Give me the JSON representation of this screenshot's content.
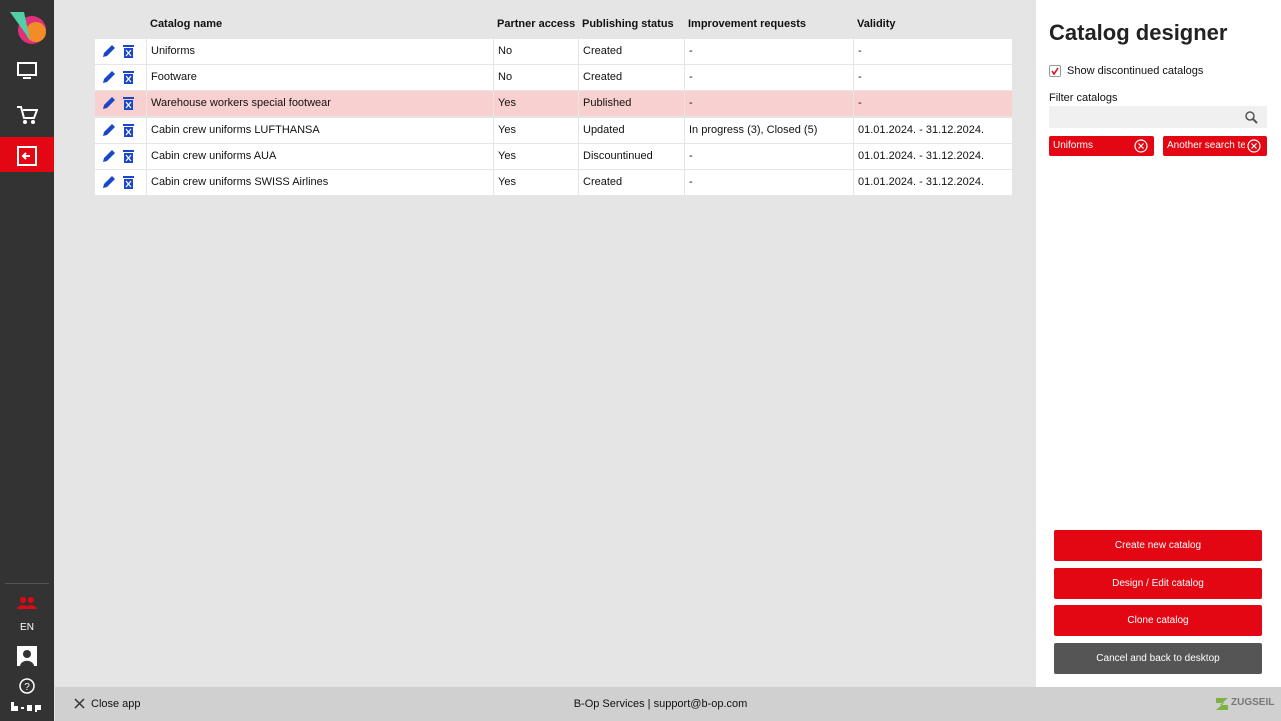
{
  "sidebar": {
    "language": "EN"
  },
  "table": {
    "headers": [
      "Catalog name",
      "Partner access",
      "Publishing status",
      "Improvement requests",
      "Validity"
    ],
    "rows": [
      [
        "Uniforms",
        "No",
        "Created",
        "-",
        "-"
      ],
      [
        "Footware",
        "No",
        "Created",
        "-",
        "-"
      ],
      [
        "Warehouse workers special footwear",
        "Yes",
        "Published",
        "-",
        "-"
      ],
      [
        "Cabin crew uniforms LUFTHANSA",
        "Yes",
        "Updated",
        "In progress (3), Closed (5)",
        "01.01.2024. - 31.12.2024."
      ],
      [
        "Cabin crew uniforms AUA",
        "Yes",
        "Discountinued",
        "-",
        "01.01.2024. - 31.12.2024."
      ],
      [
        "Cabin crew uniforms SWISS Airlines",
        "Yes",
        "Created",
        "-",
        "01.01.2024. - 31.12.2024."
      ]
    ],
    "selected_row": 2
  },
  "panel": {
    "title": "Catalog designer",
    "show_discontinued": {
      "label": "Show discontinued catalogs",
      "checked": true
    },
    "filter_label": "Filter catalogs",
    "chips": [
      "Uniforms",
      "Another search te..."
    ],
    "buttons": [
      "Create new catalog",
      "Design / Edit catalog",
      "Clone catalog",
      "Cancel and back to desktop"
    ]
  },
  "footer": {
    "close": "Close app",
    "center": "B-Op Services | support@b-op.com",
    "brand": "ZUGSEIL"
  }
}
